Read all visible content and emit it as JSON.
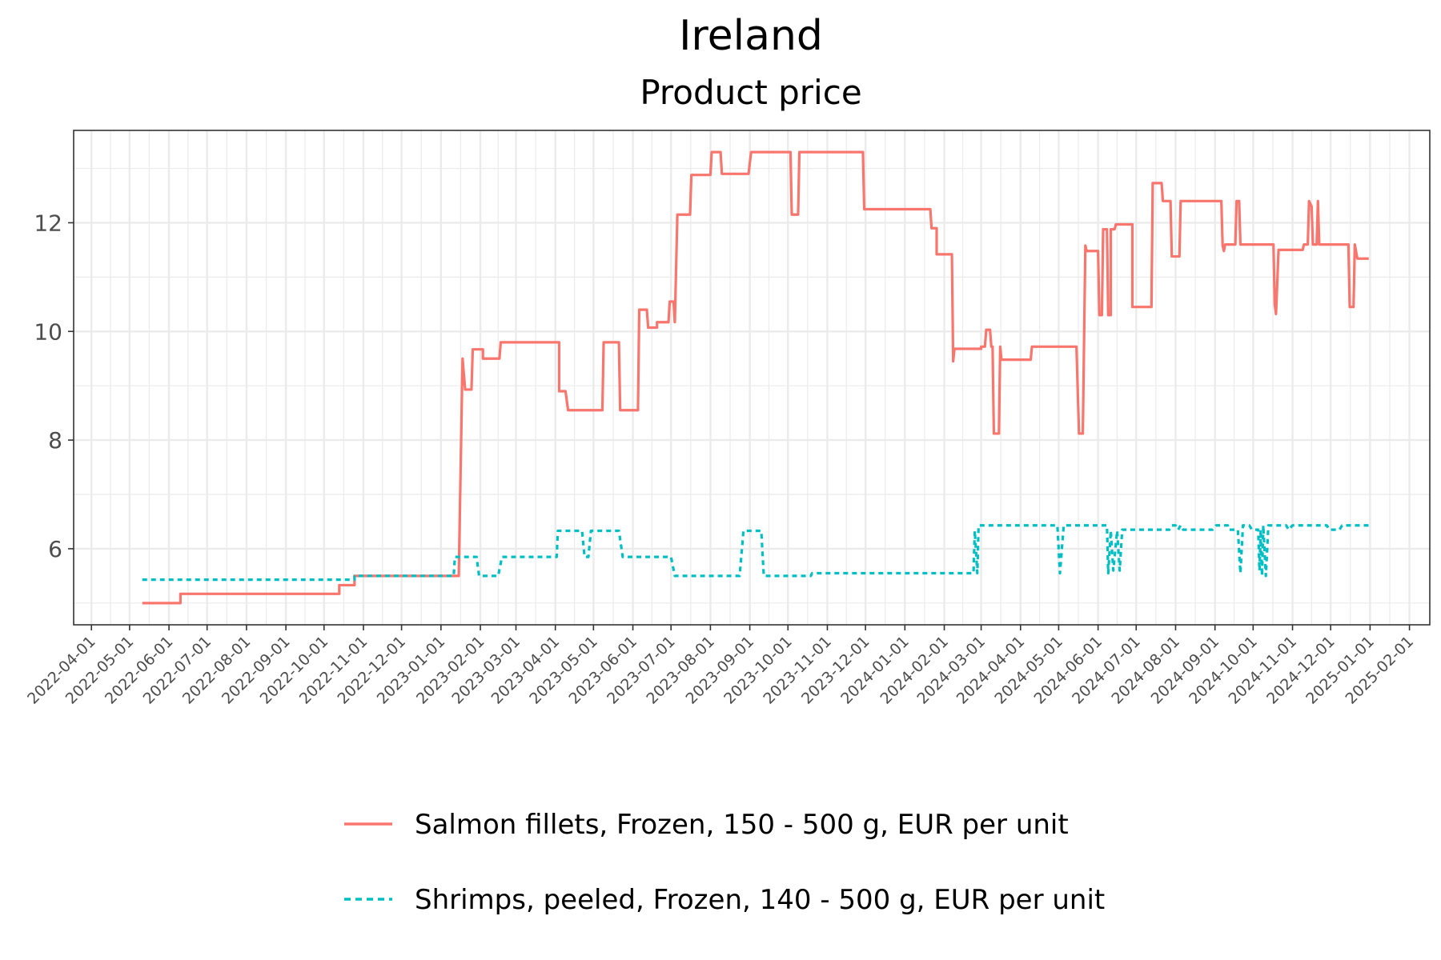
{
  "chart_data": {
    "type": "line",
    "title": "Ireland",
    "subtitle": "Product price",
    "xlabel": "",
    "ylabel": "",
    "x_axis_type": "date",
    "xlim": [
      "2022-03-18",
      "2025-02-17"
    ],
    "ylim": [
      4.6,
      13.7
    ],
    "yticks": [
      6,
      8,
      10,
      12
    ],
    "xticks": [
      "2022-04-01",
      "2022-05-01",
      "2022-06-01",
      "2022-07-01",
      "2022-08-01",
      "2022-09-01",
      "2022-10-01",
      "2022-11-01",
      "2022-12-01",
      "2023-01-01",
      "2023-02-01",
      "2023-03-01",
      "2023-04-01",
      "2023-05-01",
      "2023-06-01",
      "2023-07-01",
      "2023-08-01",
      "2023-09-01",
      "2023-10-01",
      "2023-11-01",
      "2023-12-01",
      "2024-01-01",
      "2024-02-01",
      "2024-03-01",
      "2024-04-01",
      "2024-05-01",
      "2024-06-01",
      "2024-07-01",
      "2024-08-01",
      "2024-09-01",
      "2024-10-01",
      "2024-11-01",
      "2024-12-01",
      "2025-01-01",
      "2025-02-01"
    ],
    "grid": true,
    "legend_position": "bottom",
    "series": [
      {
        "name": "Salmon fillets, Frozen, 150 - 500 g, EUR per unit",
        "color": "#F8766D",
        "dash": "solid",
        "points": [
          [
            "2022-05-11",
            5.0
          ],
          [
            "2022-06-10",
            5.0
          ],
          [
            "2022-06-10",
            5.17
          ],
          [
            "2022-10-13",
            5.17
          ],
          [
            "2022-10-13",
            5.33
          ],
          [
            "2022-10-25",
            5.33
          ],
          [
            "2022-10-25",
            5.5
          ],
          [
            "2023-01-15",
            5.5
          ],
          [
            "2023-01-18",
            9.5
          ],
          [
            "2023-01-20",
            8.93
          ],
          [
            "2023-01-25",
            8.93
          ],
          [
            "2023-01-26",
            9.67
          ],
          [
            "2023-02-03",
            9.67
          ],
          [
            "2023-02-03",
            9.5
          ],
          [
            "2023-02-16",
            9.5
          ],
          [
            "2023-02-17",
            9.8
          ],
          [
            "2023-04-04",
            9.8
          ],
          [
            "2023-04-04",
            8.9
          ],
          [
            "2023-04-09",
            8.9
          ],
          [
            "2023-04-11",
            8.55
          ],
          [
            "2023-05-08",
            8.55
          ],
          [
            "2023-05-09",
            9.8
          ],
          [
            "2023-05-21",
            9.8
          ],
          [
            "2023-05-22",
            8.55
          ],
          [
            "2023-06-05",
            8.55
          ],
          [
            "2023-06-06",
            10.4
          ],
          [
            "2023-06-12",
            10.4
          ],
          [
            "2023-06-13",
            10.07
          ],
          [
            "2023-06-20",
            10.07
          ],
          [
            "2023-06-20",
            10.17
          ],
          [
            "2023-06-29",
            10.17
          ],
          [
            "2023-06-30",
            10.55
          ],
          [
            "2023-07-03",
            10.55
          ],
          [
            "2023-07-04",
            10.17
          ],
          [
            "2023-07-06",
            12.15
          ],
          [
            "2023-07-16",
            12.15
          ],
          [
            "2023-07-17",
            12.88
          ],
          [
            "2023-08-01",
            12.88
          ],
          [
            "2023-08-02",
            13.3
          ],
          [
            "2023-08-09",
            13.3
          ],
          [
            "2023-08-10",
            12.9
          ],
          [
            "2023-08-31",
            12.9
          ],
          [
            "2023-09-02",
            13.3
          ],
          [
            "2023-10-03",
            13.3
          ],
          [
            "2023-10-04",
            12.15
          ],
          [
            "2023-10-09",
            12.15
          ],
          [
            "2023-10-10",
            13.3
          ],
          [
            "2023-11-29",
            13.3
          ],
          [
            "2023-11-30",
            12.25
          ],
          [
            "2024-01-21",
            12.25
          ],
          [
            "2024-01-22",
            11.9
          ],
          [
            "2024-01-26",
            11.9
          ],
          [
            "2024-01-26",
            11.42
          ],
          [
            "2024-02-07",
            11.42
          ],
          [
            "2024-02-08",
            9.45
          ],
          [
            "2024-02-09",
            9.68
          ],
          [
            "2024-03-01",
            9.68
          ],
          [
            "2024-03-01",
            9.72
          ],
          [
            "2024-03-04",
            9.72
          ],
          [
            "2024-03-05",
            10.03
          ],
          [
            "2024-03-08",
            10.03
          ],
          [
            "2024-03-09",
            9.72
          ],
          [
            "2024-03-10",
            9.72
          ],
          [
            "2024-03-11",
            8.12
          ],
          [
            "2024-03-15",
            8.12
          ],
          [
            "2024-03-16",
            9.72
          ],
          [
            "2024-03-17",
            9.48
          ],
          [
            "2024-04-09",
            9.48
          ],
          [
            "2024-04-10",
            9.72
          ],
          [
            "2024-05-15",
            9.72
          ],
          [
            "2024-05-17",
            8.12
          ],
          [
            "2024-05-20",
            8.12
          ],
          [
            "2024-05-22",
            11.58
          ],
          [
            "2024-05-23",
            11.48
          ],
          [
            "2024-06-01",
            11.48
          ],
          [
            "2024-06-02",
            10.3
          ],
          [
            "2024-06-04",
            10.3
          ],
          [
            "2024-06-05",
            11.88
          ],
          [
            "2024-06-08",
            11.88
          ],
          [
            "2024-06-09",
            10.3
          ],
          [
            "2024-06-11",
            10.3
          ],
          [
            "2024-06-11",
            11.88
          ],
          [
            "2024-06-14",
            11.88
          ],
          [
            "2024-06-15",
            11.97
          ],
          [
            "2024-06-28",
            11.97
          ],
          [
            "2024-06-28",
            10.45
          ],
          [
            "2024-07-13",
            10.45
          ],
          [
            "2024-07-14",
            12.73
          ],
          [
            "2024-07-21",
            12.73
          ],
          [
            "2024-07-22",
            12.4
          ],
          [
            "2024-07-28",
            12.4
          ],
          [
            "2024-07-29",
            11.38
          ],
          [
            "2024-08-04",
            11.38
          ],
          [
            "2024-08-05",
            12.4
          ],
          [
            "2024-09-06",
            12.4
          ],
          [
            "2024-09-07",
            11.58
          ],
          [
            "2024-09-08",
            11.48
          ],
          [
            "2024-09-09",
            11.6
          ],
          [
            "2024-09-17",
            11.6
          ],
          [
            "2024-09-18",
            12.4
          ],
          [
            "2024-09-20",
            12.4
          ],
          [
            "2024-09-21",
            11.6
          ],
          [
            "2024-10-17",
            11.6
          ],
          [
            "2024-10-18",
            10.5
          ],
          [
            "2024-10-19",
            10.32
          ],
          [
            "2024-10-21",
            11.5
          ],
          [
            "2024-11-09",
            11.5
          ],
          [
            "2024-11-10",
            11.6
          ],
          [
            "2024-11-13",
            11.6
          ],
          [
            "2024-11-14",
            12.4
          ],
          [
            "2024-11-16",
            12.3
          ],
          [
            "2024-11-17",
            11.6
          ],
          [
            "2024-11-20",
            11.6
          ],
          [
            "2024-11-21",
            12.4
          ],
          [
            "2024-11-22",
            11.6
          ],
          [
            "2024-12-15",
            11.6
          ],
          [
            "2024-12-16",
            10.45
          ],
          [
            "2024-12-19",
            10.45
          ],
          [
            "2024-12-20",
            11.6
          ],
          [
            "2024-12-22",
            11.34
          ],
          [
            "2024-12-31",
            11.34
          ]
        ]
      },
      {
        "name": "Shrimps, peeled, Frozen, 140 - 500 g, EUR per unit",
        "color": "#00BFC4",
        "dash": "dashed",
        "points": [
          [
            "2022-05-11",
            5.43
          ],
          [
            "2022-10-25",
            5.43
          ],
          [
            "2022-10-25",
            5.5
          ],
          [
            "2023-01-11",
            5.5
          ],
          [
            "2023-01-12",
            5.85
          ],
          [
            "2023-01-29",
            5.85
          ],
          [
            "2023-01-31",
            5.5
          ],
          [
            "2023-02-15",
            5.5
          ],
          [
            "2023-02-18",
            5.85
          ],
          [
            "2023-04-02",
            5.85
          ],
          [
            "2023-04-03",
            6.33
          ],
          [
            "2023-04-22",
            6.33
          ],
          [
            "2023-04-24",
            5.85
          ],
          [
            "2023-04-27",
            5.85
          ],
          [
            "2023-04-29",
            6.33
          ],
          [
            "2023-05-21",
            6.33
          ],
          [
            "2023-05-24",
            5.85
          ],
          [
            "2023-07-01",
            5.85
          ],
          [
            "2023-07-04",
            5.5
          ],
          [
            "2023-08-24",
            5.5
          ],
          [
            "2023-08-27",
            6.33
          ],
          [
            "2023-09-10",
            6.33
          ],
          [
            "2023-09-12",
            5.5
          ],
          [
            "2023-10-19",
            5.5
          ],
          [
            "2023-10-20",
            5.55
          ],
          [
            "2024-02-24",
            5.55
          ],
          [
            "2024-02-25",
            6.33
          ],
          [
            "2024-02-27",
            5.55
          ],
          [
            "2024-02-28",
            6.43
          ],
          [
            "2024-04-30",
            6.43
          ],
          [
            "2024-05-02",
            5.55
          ],
          [
            "2024-05-05",
            6.43
          ],
          [
            "2024-06-08",
            6.43
          ],
          [
            "2024-06-09",
            5.55
          ],
          [
            "2024-06-11",
            6.33
          ],
          [
            "2024-06-13",
            5.6
          ],
          [
            "2024-06-16",
            6.33
          ],
          [
            "2024-06-18",
            5.6
          ],
          [
            "2024-06-20",
            6.35
          ],
          [
            "2024-07-27",
            6.35
          ],
          [
            "2024-07-29",
            6.43
          ],
          [
            "2024-08-01",
            6.43
          ],
          [
            "2024-08-03",
            6.35
          ],
          [
            "2024-08-05",
            6.43
          ],
          [
            "2024-08-07",
            6.35
          ],
          [
            "2024-08-30",
            6.35
          ],
          [
            "2024-09-02",
            6.43
          ],
          [
            "2024-09-11",
            6.43
          ],
          [
            "2024-09-12",
            6.35
          ],
          [
            "2024-09-19",
            6.35
          ],
          [
            "2024-09-21",
            5.55
          ],
          [
            "2024-09-23",
            6.43
          ],
          [
            "2024-09-28",
            6.43
          ],
          [
            "2024-09-30",
            6.35
          ],
          [
            "2024-10-05",
            6.35
          ],
          [
            "2024-10-06",
            5.6
          ],
          [
            "2024-10-07",
            6.35
          ],
          [
            "2024-10-08",
            5.5
          ],
          [
            "2024-10-09",
            6.43
          ],
          [
            "2024-10-11",
            5.5
          ],
          [
            "2024-10-13",
            6.43
          ],
          [
            "2024-10-27",
            6.43
          ],
          [
            "2024-10-29",
            6.35
          ],
          [
            "2024-11-01",
            6.43
          ],
          [
            "2024-11-28",
            6.43
          ],
          [
            "2024-11-30",
            6.35
          ],
          [
            "2024-12-08",
            6.35
          ],
          [
            "2024-12-10",
            6.43
          ],
          [
            "2024-12-31",
            6.43
          ]
        ]
      }
    ]
  }
}
